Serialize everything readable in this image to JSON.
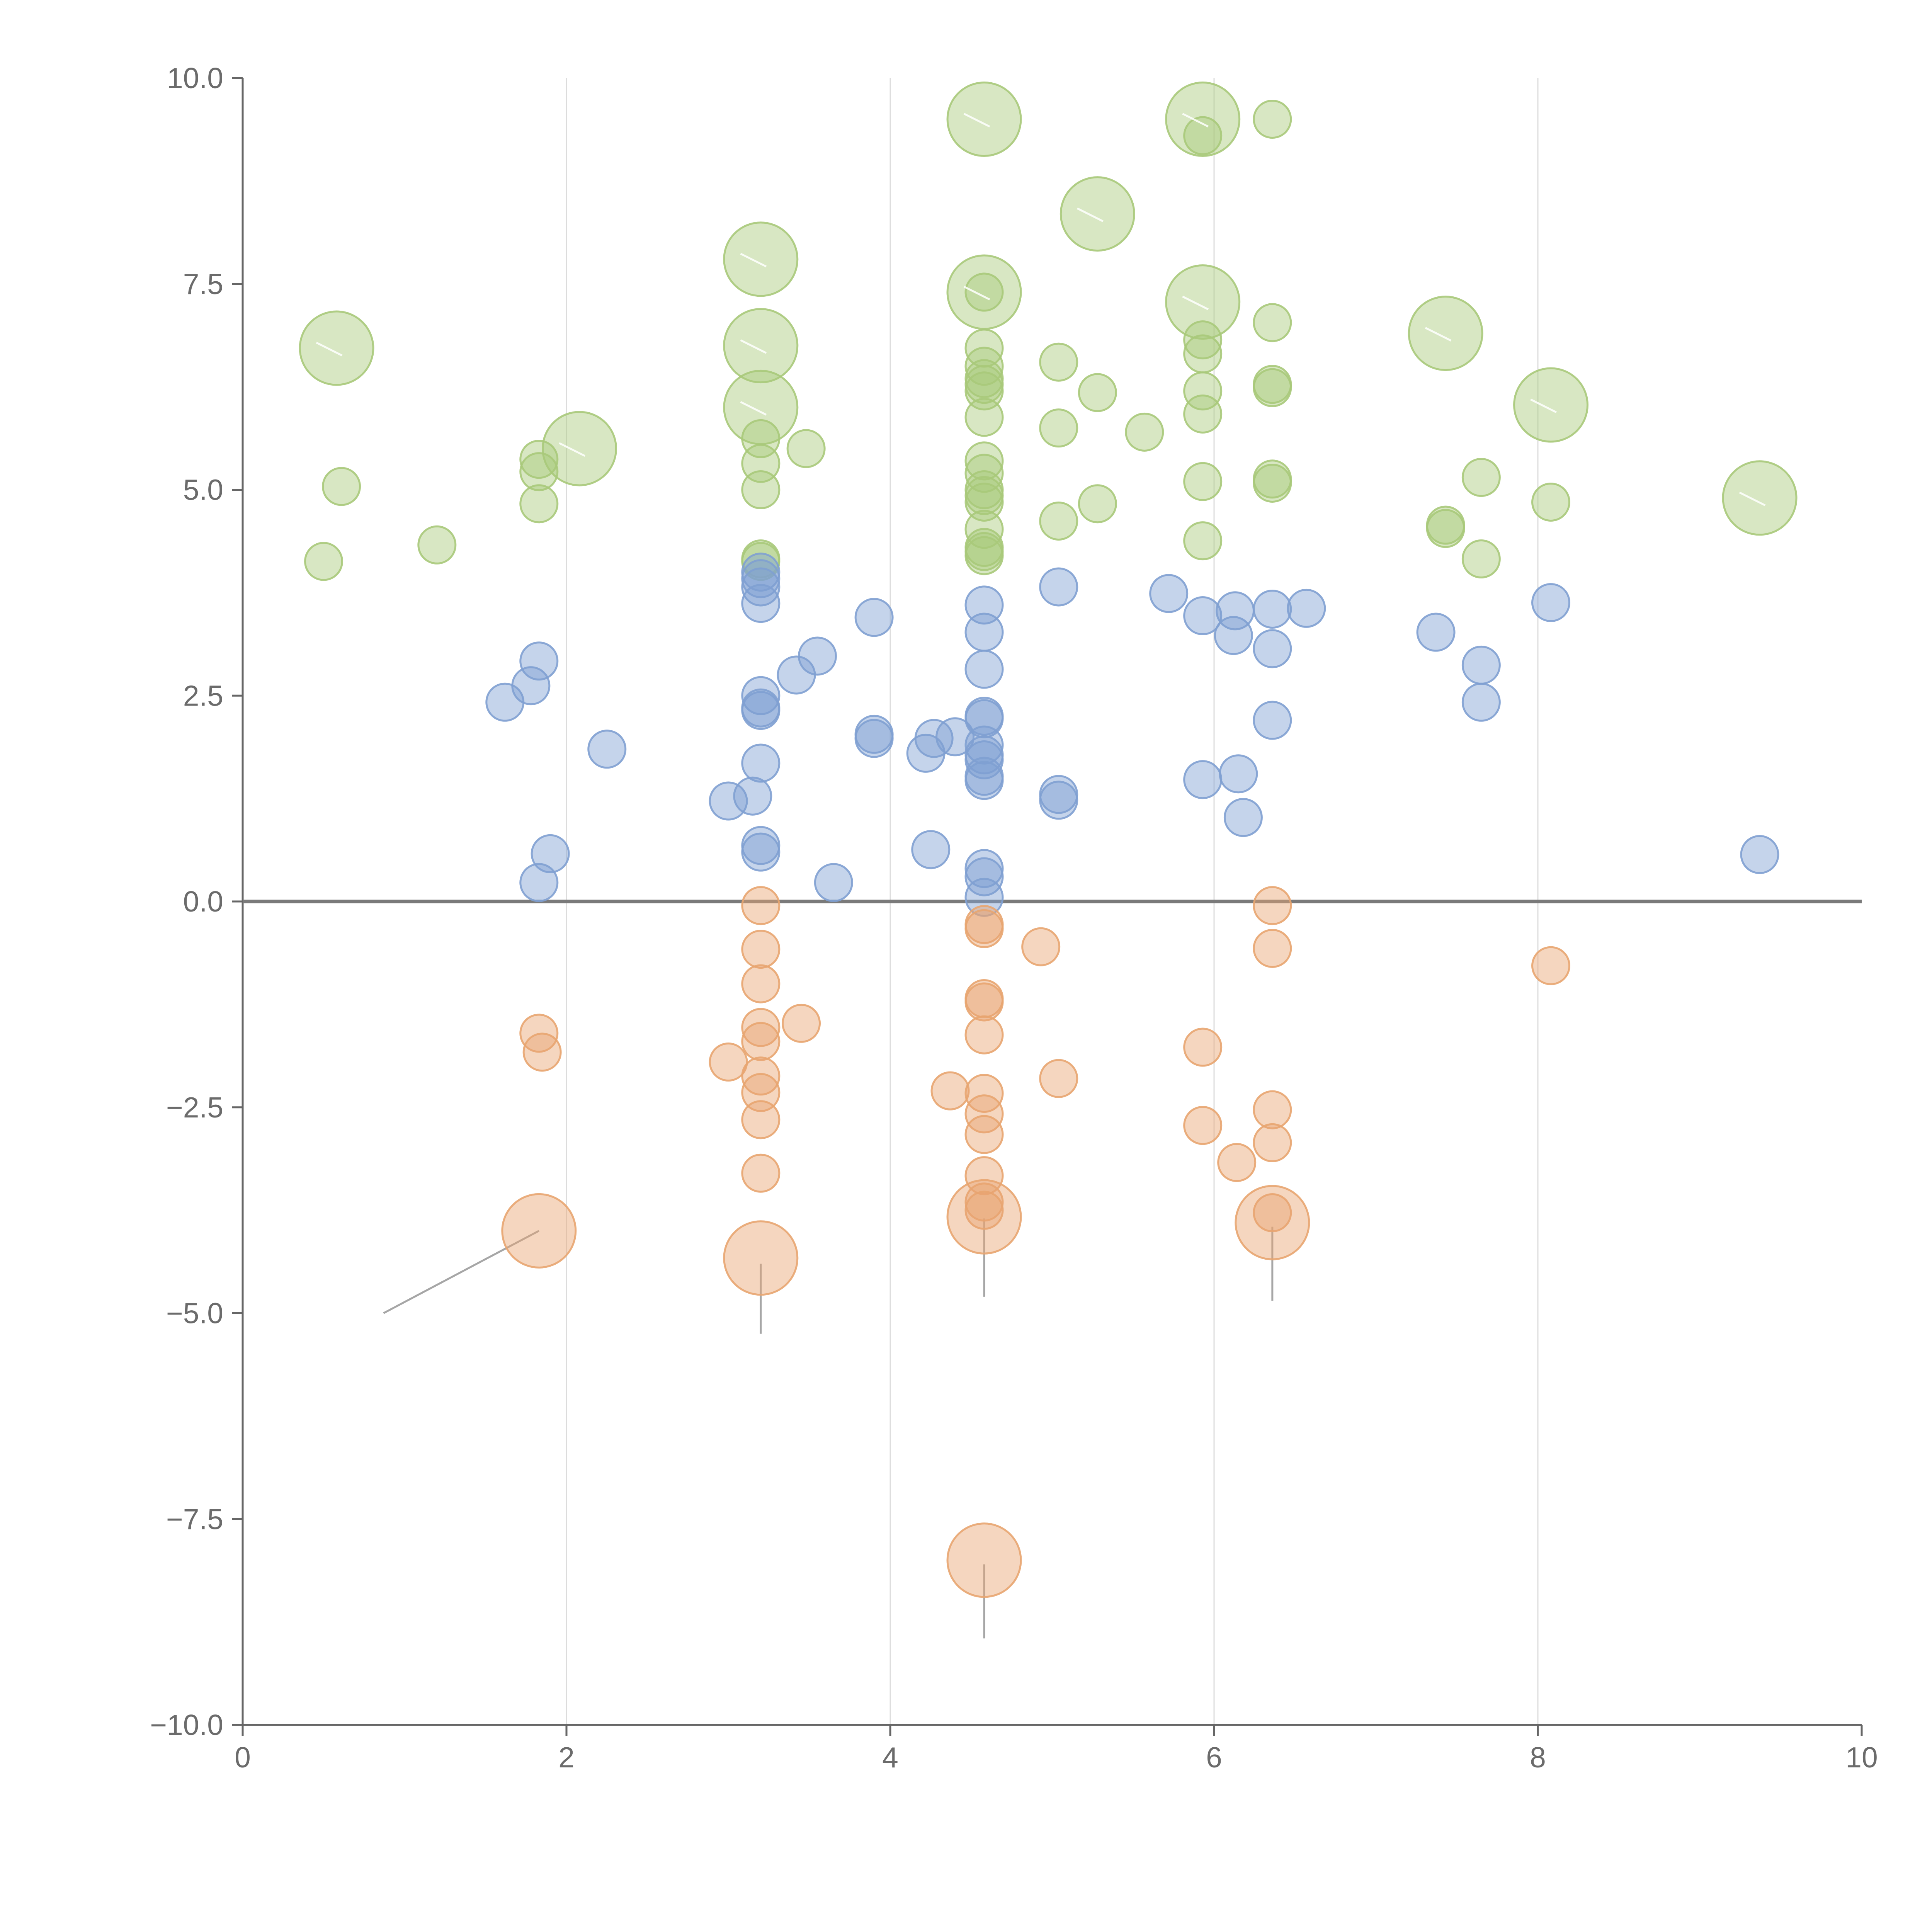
{
  "chart_data": {
    "type": "scatter",
    "title": "",
    "xlabel": "",
    "ylabel": "",
    "xlim": [
      0,
      10
    ],
    "ylim": [
      -10,
      10
    ],
    "x_ticks": [
      "0",
      "2",
      "4",
      "6",
      "8",
      "10"
    ],
    "y_ticks": [
      "−10.0",
      "−7.5",
      "−5.0",
      "−2.5",
      "0.0",
      "2.5",
      "5.0",
      "7.5",
      "10.0"
    ],
    "grid": "vertical lines at x = 2, 4, 6, 8",
    "reference_line": 0,
    "legend": "none",
    "colors": {
      "high": "#a9c97a",
      "mid": "#7fa0d2",
      "low": "#e8a570",
      "axis": "#666666",
      "grid": "#dcdcdc",
      "leader_line": "#a6a6a6"
    },
    "series": [
      {
        "color": "#a9c97a",
        "points": [
          {
            "x": 0.58,
            "y": 6.72,
            "size": "large"
          },
          {
            "x": 2.08,
            "y": 5.5,
            "size": "large"
          },
          {
            "x": 3.2,
            "y": 7.8,
            "size": "large"
          },
          {
            "x": 3.2,
            "y": 6.75,
            "size": "large"
          },
          {
            "x": 3.2,
            "y": 6.0,
            "size": "large"
          },
          {
            "x": 4.58,
            "y": 9.5,
            "size": "large"
          },
          {
            "x": 4.58,
            "y": 7.4,
            "size": "large"
          },
          {
            "x": 5.28,
            "y": 8.35,
            "size": "large"
          },
          {
            "x": 5.93,
            "y": 9.5,
            "size": "large"
          },
          {
            "x": 5.93,
            "y": 7.28,
            "size": "large"
          },
          {
            "x": 7.43,
            "y": 6.9,
            "size": "large"
          },
          {
            "x": 8.08,
            "y": 6.03,
            "size": "large"
          },
          {
            "x": 9.37,
            "y": 4.9,
            "size": "large"
          },
          {
            "x": 0.5,
            "y": 4.13,
            "size": "small"
          },
          {
            "x": 0.61,
            "y": 5.04,
            "size": "small"
          },
          {
            "x": 1.2,
            "y": 4.33,
            "size": "small"
          },
          {
            "x": 1.83,
            "y": 5.37,
            "size": "small"
          },
          {
            "x": 1.83,
            "y": 5.22,
            "size": "small"
          },
          {
            "x": 1.83,
            "y": 4.83,
            "size": "small"
          },
          {
            "x": 3.2,
            "y": 5.62,
            "size": "small"
          },
          {
            "x": 3.2,
            "y": 5.32,
            "size": "small"
          },
          {
            "x": 3.2,
            "y": 5.0,
            "size": "small"
          },
          {
            "x": 3.2,
            "y": 4.16,
            "size": "small"
          },
          {
            "x": 3.2,
            "y": 4.13,
            "size": "small"
          },
          {
            "x": 3.48,
            "y": 5.5,
            "size": "small"
          },
          {
            "x": 4.58,
            "y": 7.4,
            "size": "small"
          },
          {
            "x": 4.58,
            "y": 6.72,
            "size": "small"
          },
          {
            "x": 4.58,
            "y": 6.5,
            "size": "small"
          },
          {
            "x": 4.58,
            "y": 6.35,
            "size": "small"
          },
          {
            "x": 4.58,
            "y": 6.28,
            "size": "small"
          },
          {
            "x": 4.58,
            "y": 6.2,
            "size": "small"
          },
          {
            "x": 4.58,
            "y": 5.88,
            "size": "small"
          },
          {
            "x": 4.58,
            "y": 5.35,
            "size": "small"
          },
          {
            "x": 4.58,
            "y": 5.2,
            "size": "small"
          },
          {
            "x": 4.58,
            "y": 5.0,
            "size": "small"
          },
          {
            "x": 4.58,
            "y": 4.93,
            "size": "small"
          },
          {
            "x": 4.58,
            "y": 4.85,
            "size": "small"
          },
          {
            "x": 4.58,
            "y": 4.52,
            "size": "small"
          },
          {
            "x": 4.58,
            "y": 4.3,
            "size": "small"
          },
          {
            "x": 4.58,
            "y": 4.25,
            "size": "small"
          },
          {
            "x": 4.58,
            "y": 4.2,
            "size": "small"
          },
          {
            "x": 5.04,
            "y": 6.55,
            "size": "small"
          },
          {
            "x": 5.04,
            "y": 5.75,
            "size": "small"
          },
          {
            "x": 5.04,
            "y": 4.62,
            "size": "small"
          },
          {
            "x": 5.28,
            "y": 6.18,
            "size": "small"
          },
          {
            "x": 5.28,
            "y": 4.83,
            "size": "small"
          },
          {
            "x": 5.57,
            "y": 5.7,
            "size": "small"
          },
          {
            "x": 5.93,
            "y": 9.3,
            "size": "small"
          },
          {
            "x": 5.93,
            "y": 6.82,
            "size": "small"
          },
          {
            "x": 5.93,
            "y": 6.65,
            "size": "small"
          },
          {
            "x": 5.93,
            "y": 6.2,
            "size": "small"
          },
          {
            "x": 5.93,
            "y": 5.92,
            "size": "small"
          },
          {
            "x": 5.93,
            "y": 5.1,
            "size": "small"
          },
          {
            "x": 5.93,
            "y": 4.38,
            "size": "small"
          },
          {
            "x": 6.36,
            "y": 9.5,
            "size": "small"
          },
          {
            "x": 6.36,
            "y": 7.03,
            "size": "small"
          },
          {
            "x": 6.36,
            "y": 6.28,
            "size": "small"
          },
          {
            "x": 6.36,
            "y": 6.24,
            "size": "small"
          },
          {
            "x": 6.36,
            "y": 5.13,
            "size": "small"
          },
          {
            "x": 6.36,
            "y": 5.08,
            "size": "small"
          },
          {
            "x": 7.43,
            "y": 4.57,
            "size": "small"
          },
          {
            "x": 7.43,
            "y": 4.53,
            "size": "small"
          },
          {
            "x": 7.65,
            "y": 5.15,
            "size": "small"
          },
          {
            "x": 7.65,
            "y": 4.16,
            "size": "small"
          },
          {
            "x": 8.08,
            "y": 4.85,
            "size": "small"
          }
        ]
      },
      {
        "color": "#7fa0d2",
        "points": [
          {
            "x": 1.62,
            "y": 2.42,
            "size": "small"
          },
          {
            "x": 1.78,
            "y": 2.62,
            "size": "small"
          },
          {
            "x": 1.83,
            "y": 2.92,
            "size": "small"
          },
          {
            "x": 1.9,
            "y": 0.58,
            "size": "small"
          },
          {
            "x": 1.83,
            "y": 0.23,
            "size": "small"
          },
          {
            "x": 2.25,
            "y": 1.85,
            "size": "small"
          },
          {
            "x": 3.0,
            "y": 1.22,
            "size": "small"
          },
          {
            "x": 3.15,
            "y": 1.28,
            "size": "small"
          },
          {
            "x": 3.2,
            "y": 4.0,
            "size": "small"
          },
          {
            "x": 3.2,
            "y": 3.92,
            "size": "small"
          },
          {
            "x": 3.2,
            "y": 3.82,
            "size": "small"
          },
          {
            "x": 3.2,
            "y": 3.62,
            "size": "small"
          },
          {
            "x": 3.2,
            "y": 2.5,
            "size": "small"
          },
          {
            "x": 3.2,
            "y": 2.35,
            "size": "small"
          },
          {
            "x": 3.2,
            "y": 2.32,
            "size": "small"
          },
          {
            "x": 3.2,
            "y": 1.68,
            "size": "small"
          },
          {
            "x": 3.2,
            "y": 0.68,
            "size": "small"
          },
          {
            "x": 3.2,
            "y": 0.6,
            "size": "small"
          },
          {
            "x": 3.42,
            "y": 2.75,
            "size": "small"
          },
          {
            "x": 3.55,
            "y": 2.98,
            "size": "small"
          },
          {
            "x": 3.65,
            "y": 0.23,
            "size": "small"
          },
          {
            "x": 3.9,
            "y": 3.45,
            "size": "small"
          },
          {
            "x": 3.9,
            "y": 2.03,
            "size": "small"
          },
          {
            "x": 3.9,
            "y": 1.98,
            "size": "small"
          },
          {
            "x": 4.22,
            "y": 1.8,
            "size": "small"
          },
          {
            "x": 4.27,
            "y": 1.98,
            "size": "small"
          },
          {
            "x": 4.4,
            "y": 2.0,
            "size": "small"
          },
          {
            "x": 4.25,
            "y": 0.63,
            "size": "small"
          },
          {
            "x": 4.58,
            "y": 3.6,
            "size": "small"
          },
          {
            "x": 4.58,
            "y": 3.27,
            "size": "small"
          },
          {
            "x": 4.58,
            "y": 2.82,
            "size": "small"
          },
          {
            "x": 4.58,
            "y": 2.25,
            "size": "small"
          },
          {
            "x": 4.58,
            "y": 2.22,
            "size": "small"
          },
          {
            "x": 4.58,
            "y": 1.9,
            "size": "small"
          },
          {
            "x": 4.58,
            "y": 1.78,
            "size": "small"
          },
          {
            "x": 4.58,
            "y": 1.72,
            "size": "small"
          },
          {
            "x": 4.58,
            "y": 1.52,
            "size": "small"
          },
          {
            "x": 4.58,
            "y": 1.47,
            "size": "small"
          },
          {
            "x": 4.58,
            "y": 0.4,
            "size": "small"
          },
          {
            "x": 4.58,
            "y": 0.3,
            "size": "small"
          },
          {
            "x": 4.58,
            "y": 0.05,
            "size": "small"
          },
          {
            "x": 5.04,
            "y": 3.82,
            "size": "small"
          },
          {
            "x": 5.04,
            "y": 1.3,
            "size": "small"
          },
          {
            "x": 5.04,
            "y": 1.23,
            "size": "small"
          },
          {
            "x": 5.72,
            "y": 3.74,
            "size": "small"
          },
          {
            "x": 5.93,
            "y": 3.47,
            "size": "small"
          },
          {
            "x": 5.93,
            "y": 1.48,
            "size": "small"
          },
          {
            "x": 6.13,
            "y": 3.53,
            "size": "small"
          },
          {
            "x": 6.12,
            "y": 3.23,
            "size": "small"
          },
          {
            "x": 6.15,
            "y": 1.55,
            "size": "small"
          },
          {
            "x": 6.18,
            "y": 1.02,
            "size": "small"
          },
          {
            "x": 6.36,
            "y": 3.55,
            "size": "small"
          },
          {
            "x": 6.36,
            "y": 3.07,
            "size": "small"
          },
          {
            "x": 6.36,
            "y": 2.2,
            "size": "small"
          },
          {
            "x": 6.57,
            "y": 3.56,
            "size": "small"
          },
          {
            "x": 7.37,
            "y": 3.27,
            "size": "small"
          },
          {
            "x": 7.65,
            "y": 2.87,
            "size": "small"
          },
          {
            "x": 7.65,
            "y": 2.42,
            "size": "small"
          },
          {
            "x": 8.08,
            "y": 3.63,
            "size": "small"
          },
          {
            "x": 9.37,
            "y": 0.57,
            "size": "small"
          }
        ]
      },
      {
        "color": "#e8a570",
        "points": [
          {
            "x": 1.83,
            "y": -1.6,
            "size": "small"
          },
          {
            "x": 1.85,
            "y": -1.83,
            "size": "small"
          },
          {
            "x": 1.83,
            "y": -4.0,
            "size": "large"
          },
          {
            "x": 3.0,
            "y": -1.95,
            "size": "small"
          },
          {
            "x": 3.2,
            "y": -0.05,
            "size": "small"
          },
          {
            "x": 3.2,
            "y": -0.58,
            "size": "small"
          },
          {
            "x": 3.2,
            "y": -1.0,
            "size": "small"
          },
          {
            "x": 3.2,
            "y": -1.53,
            "size": "small"
          },
          {
            "x": 3.2,
            "y": -1.7,
            "size": "small"
          },
          {
            "x": 3.2,
            "y": -2.12,
            "size": "small"
          },
          {
            "x": 3.2,
            "y": -2.32,
            "size": "small"
          },
          {
            "x": 3.2,
            "y": -2.65,
            "size": "small"
          },
          {
            "x": 3.2,
            "y": -3.3,
            "size": "small"
          },
          {
            "x": 3.2,
            "y": -4.33,
            "size": "large"
          },
          {
            "x": 3.45,
            "y": -1.48,
            "size": "small"
          },
          {
            "x": 4.37,
            "y": -2.3,
            "size": "small"
          },
          {
            "x": 4.58,
            "y": -0.28,
            "size": "small"
          },
          {
            "x": 4.58,
            "y": -0.33,
            "size": "small"
          },
          {
            "x": 4.58,
            "y": -1.18,
            "size": "small"
          },
          {
            "x": 4.58,
            "y": -1.22,
            "size": "small"
          },
          {
            "x": 4.58,
            "y": -1.62,
            "size": "small"
          },
          {
            "x": 4.58,
            "y": -2.33,
            "size": "small"
          },
          {
            "x": 4.58,
            "y": -2.58,
            "size": "small"
          },
          {
            "x": 4.58,
            "y": -2.83,
            "size": "small"
          },
          {
            "x": 4.58,
            "y": -3.33,
            "size": "small"
          },
          {
            "x": 4.58,
            "y": -3.65,
            "size": "small"
          },
          {
            "x": 4.58,
            "y": -3.75,
            "size": "small"
          },
          {
            "x": 4.58,
            "y": -3.83,
            "size": "large"
          },
          {
            "x": 4.58,
            "y": -8.0,
            "size": "large"
          },
          {
            "x": 4.93,
            "y": -0.55,
            "size": "small"
          },
          {
            "x": 5.04,
            "y": -2.15,
            "size": "small"
          },
          {
            "x": 5.93,
            "y": -1.77,
            "size": "small"
          },
          {
            "x": 5.93,
            "y": -2.72,
            "size": "small"
          },
          {
            "x": 6.14,
            "y": -3.17,
            "size": "small"
          },
          {
            "x": 6.36,
            "y": -0.05,
            "size": "small"
          },
          {
            "x": 6.36,
            "y": -0.57,
            "size": "small"
          },
          {
            "x": 6.36,
            "y": -2.53,
            "size": "small"
          },
          {
            "x": 6.36,
            "y": -2.93,
            "size": "small"
          },
          {
            "x": 6.36,
            "y": -3.78,
            "size": "small"
          },
          {
            "x": 6.36,
            "y": -3.9,
            "size": "large"
          },
          {
            "x": 8.08,
            "y": -0.78,
            "size": "small"
          }
        ]
      }
    ],
    "annotation_leaders": [
      {
        "from": [
          1.83,
          -4.0
        ],
        "to": [
          0.87,
          -5.0
        ]
      },
      {
        "from": [
          3.2,
          -4.4
        ],
        "to": [
          3.2,
          -5.25
        ]
      },
      {
        "from": [
          4.58,
          -3.85
        ],
        "to": [
          4.58,
          -4.8
        ]
      },
      {
        "from": [
          4.58,
          -8.05
        ],
        "to": [
          4.58,
          -8.95
        ]
      },
      {
        "from": [
          6.36,
          -3.95
        ],
        "to": [
          6.36,
          -4.85
        ]
      }
    ]
  }
}
